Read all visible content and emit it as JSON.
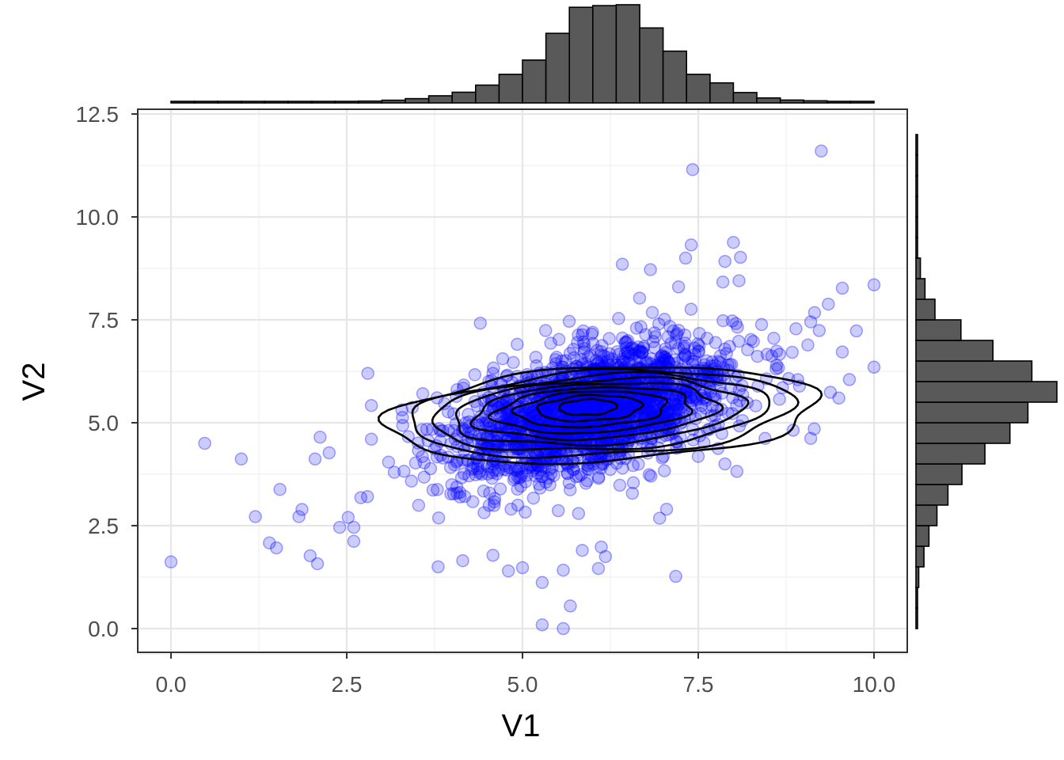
{
  "chart_data": {
    "type": "scatter",
    "subtype": "marginal-histogram-scatter-with-2d-density-contours",
    "xlabel": "V1",
    "ylabel": "V2",
    "xlim": [
      -0.5,
      10.5
    ],
    "ylim": [
      -1.2,
      12.6
    ],
    "x_ticks": [
      "0.0",
      "2.5",
      "5.0",
      "7.5",
      "10.0"
    ],
    "x_tick_values": [
      0,
      2.5,
      5,
      7.5,
      10
    ],
    "y_ticks": [
      "0.0",
      "2.5",
      "5.0",
      "7.5",
      "10.0",
      "12.5"
    ],
    "y_tick_values": [
      0,
      2.5,
      5,
      7.5,
      10,
      12.5
    ],
    "grid": true,
    "point_color": "#0000ff",
    "point_opacity": 0.2,
    "contour_color": "#000000",
    "histogram_fill": "#595959",
    "histogram_outline": "#000000",
    "approx_points": 2000,
    "center": [
      6.0,
      5.3
    ],
    "covariance": {
      "sd_x": 1.0,
      "sd_y": 0.85,
      "corr": 0.5
    },
    "highlight_points": [
      {
        "x": 0.0,
        "y": 1.62
      },
      {
        "x": 0.48,
        "y": 4.5
      },
      {
        "x": 1.0,
        "y": 4.12
      },
      {
        "x": 1.2,
        "y": 2.72
      },
      {
        "x": 1.4,
        "y": 2.08
      },
      {
        "x": 1.5,
        "y": 1.96
      },
      {
        "x": 1.55,
        "y": 3.38
      },
      {
        "x": 1.82,
        "y": 2.72
      },
      {
        "x": 1.98,
        "y": 1.77
      },
      {
        "x": 2.05,
        "y": 4.12
      },
      {
        "x": 2.12,
        "y": 4.65
      },
      {
        "x": 2.25,
        "y": 4.27
      },
      {
        "x": 2.4,
        "y": 2.46
      },
      {
        "x": 2.52,
        "y": 2.7
      },
      {
        "x": 2.6,
        "y": 2.46
      },
      {
        "x": 2.6,
        "y": 2.12
      },
      {
        "x": 2.7,
        "y": 3.18
      },
      {
        "x": 2.8,
        "y": 6.2
      },
      {
        "x": 2.85,
        "y": 5.42
      },
      {
        "x": 2.85,
        "y": 4.6
      },
      {
        "x": 3.8,
        "y": 1.5
      },
      {
        "x": 4.15,
        "y": 1.65
      },
      {
        "x": 4.4,
        "y": 7.42
      },
      {
        "x": 4.58,
        "y": 1.78
      },
      {
        "x": 4.8,
        "y": 1.4
      },
      {
        "x": 5.0,
        "y": 1.48
      },
      {
        "x": 5.28,
        "y": 1.12
      },
      {
        "x": 5.28,
        "y": 0.09
      },
      {
        "x": 5.58,
        "y": 1.42
      },
      {
        "x": 5.58,
        "y": 0.0
      },
      {
        "x": 5.68,
        "y": 0.55
      },
      {
        "x": 5.85,
        "y": 1.9
      },
      {
        "x": 6.08,
        "y": 1.46
      },
      {
        "x": 6.12,
        "y": 1.98
      },
      {
        "x": 6.18,
        "y": 1.75
      },
      {
        "x": 7.18,
        "y": 1.27
      },
      {
        "x": 6.95,
        "y": 2.68
      },
      {
        "x": 7.05,
        "y": 2.9
      },
      {
        "x": 7.42,
        "y": 11.15
      },
      {
        "x": 9.25,
        "y": 11.6
      },
      {
        "x": 7.4,
        "y": 9.32
      },
      {
        "x": 8.0,
        "y": 9.38
      },
      {
        "x": 8.1,
        "y": 9.02
      },
      {
        "x": 7.32,
        "y": 9.0
      },
      {
        "x": 7.88,
        "y": 8.92
      },
      {
        "x": 6.82,
        "y": 8.72
      },
      {
        "x": 6.42,
        "y": 8.85
      },
      {
        "x": 7.22,
        "y": 8.3
      },
      {
        "x": 8.08,
        "y": 8.45
      },
      {
        "x": 7.85,
        "y": 8.42
      },
      {
        "x": 9.55,
        "y": 8.27
      },
      {
        "x": 10.0,
        "y": 8.35
      },
      {
        "x": 9.35,
        "y": 7.88
      },
      {
        "x": 9.1,
        "y": 7.45
      },
      {
        "x": 9.75,
        "y": 7.23
      },
      {
        "x": 9.55,
        "y": 6.72
      },
      {
        "x": 10.0,
        "y": 6.35
      },
      {
        "x": 9.65,
        "y": 6.05
      },
      {
        "x": 9.5,
        "y": 5.6
      },
      {
        "x": 9.38,
        "y": 5.74
      },
      {
        "x": 9.15,
        "y": 4.85
      },
      {
        "x": 9.1,
        "y": 4.62
      },
      {
        "x": 8.85,
        "y": 4.82
      },
      {
        "x": 8.45,
        "y": 4.62
      },
      {
        "x": 8.05,
        "y": 3.82
      },
      {
        "x": 7.88,
        "y": 4.0
      },
      {
        "x": 7.5,
        "y": 4.18
      }
    ],
    "x_histogram": {
      "bin_edges": [
        0.0,
        0.333,
        0.667,
        1.0,
        1.333,
        1.667,
        2.0,
        2.333,
        2.667,
        3.0,
        3.333,
        3.667,
        4.0,
        4.333,
        4.667,
        5.0,
        5.333,
        5.667,
        6.0,
        6.333,
        6.667,
        7.0,
        7.333,
        7.667,
        8.0,
        8.333,
        8.667,
        9.0,
        9.333,
        9.667,
        10.0
      ],
      "counts": [
        1,
        1,
        1,
        2,
        4,
        2,
        5,
        7,
        10,
        15,
        24,
        40,
        60,
        100,
        160,
        240,
        390,
        536,
        545,
        550,
        420,
        290,
        160,
        112,
        58,
        28,
        16,
        12,
        3,
        2
      ]
    },
    "y_histogram": {
      "bin_edges": [
        0.0,
        0.5,
        1.0,
        1.5,
        2.0,
        2.5,
        3.0,
        3.5,
        4.0,
        4.5,
        5.0,
        5.5,
        6.0,
        6.5,
        7.0,
        7.5,
        8.0,
        8.5,
        9.0,
        9.5,
        10.0,
        10.5,
        11.0,
        11.5,
        12.0
      ],
      "counts": [
        1,
        4,
        14,
        40,
        65,
        105,
        160,
        230,
        345,
        470,
        560,
        705,
        580,
        385,
        225,
        95,
        45,
        22,
        8,
        3,
        1,
        1,
        1,
        1
      ]
    },
    "contour_levels": 9
  }
}
